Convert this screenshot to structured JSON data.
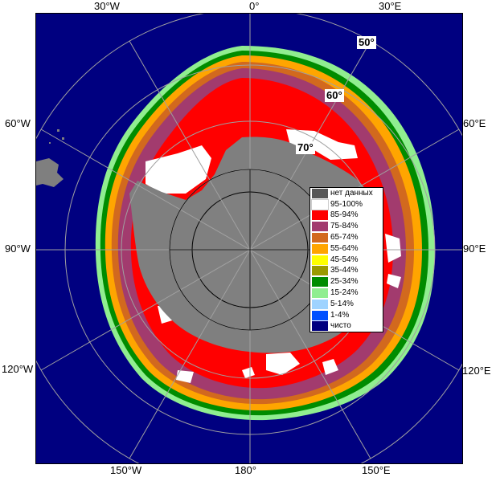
{
  "map": {
    "lon_labels": {
      "w30": "30°W",
      "zero": "0°",
      "e30": "30°E",
      "w60": "60°W",
      "e60": "60°E",
      "w90": "90°W",
      "e90": "90°E",
      "w120": "120°W",
      "e120": "120°E",
      "w150": "150°W",
      "s180": "180°",
      "e150": "150°E"
    },
    "lat_labels": {
      "lat50": "50°",
      "lat60": "60°",
      "lat70": "70°"
    }
  },
  "legend": {
    "items": [
      {
        "label": "нет данных",
        "color": "#585858"
      },
      {
        "label": "95-100%",
        "color": "#ffffff"
      },
      {
        "label": "85-94%",
        "color": "#ff0000"
      },
      {
        "label": "75-84%",
        "color": "#a23b6e"
      },
      {
        "label": "65-74%",
        "color": "#d2691e"
      },
      {
        "label": "55-64%",
        "color": "#ffa500"
      },
      {
        "label": "45-54%",
        "color": "#ffff00"
      },
      {
        "label": "35-44%",
        "color": "#9a9a00"
      },
      {
        "label": "25-34%",
        "color": "#008c00"
      },
      {
        "label": "15-24%",
        "color": "#90ee90"
      },
      {
        "label": "5-14%",
        "color": "#9fd3ff"
      },
      {
        "label": "1-4%",
        "color": "#0050ff"
      },
      {
        "label": "чисто",
        "color": "#000080"
      }
    ]
  },
  "colors": {
    "ocean": "#000080",
    "land": "#7f7f7f",
    "pole": "#808080",
    "graticule": "#a0a0a0"
  }
}
